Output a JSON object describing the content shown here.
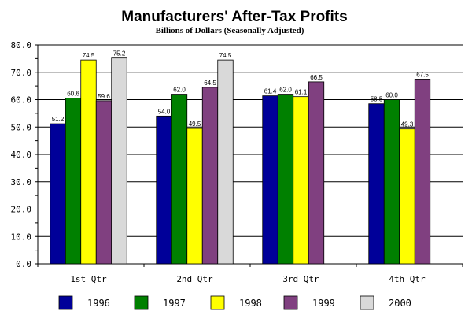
{
  "chart_data": {
    "type": "bar",
    "title": "Manufacturers' After-Tax Profits",
    "subtitle": "Billions of Dollars  (Seasonally Adjusted)",
    "xlabel": "",
    "ylabel": "",
    "ylim": [
      0,
      80
    ],
    "yticks": [
      "0.0",
      "10.0",
      "20.0",
      "30.0",
      "40.0",
      "50.0",
      "60.0",
      "70.0",
      "80.0"
    ],
    "grid": true,
    "legend_position": "bottom",
    "categories": [
      "1st Qtr",
      "2nd Qtr",
      "3rd Qtr",
      "4th Qtr"
    ],
    "series": [
      {
        "name": "1996",
        "color": "#000099",
        "values": [
          51.2,
          54.0,
          61.4,
          58.5
        ],
        "labels": [
          "51.2",
          "54.0",
          "61.4",
          "58.5"
        ]
      },
      {
        "name": "1997",
        "color": "#008000",
        "values": [
          60.6,
          62.0,
          62.0,
          60.0
        ],
        "labels": [
          "60.6",
          "62.0",
          "62.0",
          "60.0"
        ]
      },
      {
        "name": "1998",
        "color": "#ffff00",
        "values": [
          74.5,
          49.5,
          61.1,
          49.3
        ],
        "labels": [
          "74.5",
          "49.5",
          "61.1",
          "49.3"
        ]
      },
      {
        "name": "1999",
        "color": "#804080",
        "values": [
          59.6,
          64.5,
          66.5,
          67.5
        ],
        "labels": [
          "59.6",
          "64.5",
          "66.5",
          "67.5"
        ]
      },
      {
        "name": "2000",
        "color": "#d9d9d9",
        "values": [
          75.2,
          74.5,
          null,
          null
        ],
        "labels": [
          "75.2",
          "74.5",
          "",
          ""
        ]
      }
    ]
  }
}
